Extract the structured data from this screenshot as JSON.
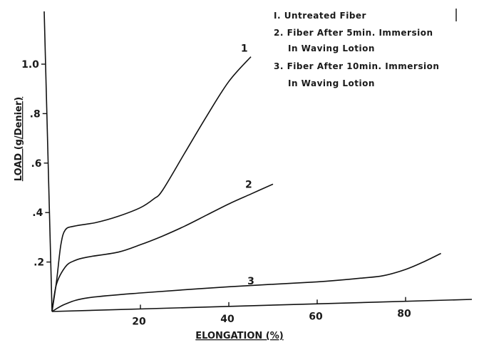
{
  "chart_data": {
    "type": "line",
    "title": "",
    "xlabel": "ELONGATION (%)",
    "ylabel": "LOAD (g/Denier)",
    "xlim": [
      0,
      95
    ],
    "ylim": [
      0,
      1.15
    ],
    "x_ticks": [
      {
        "value": 20,
        "label": "20"
      },
      {
        "value": 40,
        "label": "40"
      },
      {
        "value": 60,
        "label": "60"
      },
      {
        "value": 80,
        "label": "80"
      }
    ],
    "y_ticks": [
      {
        "value": 0.2,
        "label": ".2"
      },
      {
        "value": 0.4,
        "label": ".4"
      },
      {
        "value": 0.6,
        "label": ".6"
      },
      {
        "value": 0.8,
        "label": ".8"
      },
      {
        "value": 1.0,
        "label": "1.0"
      }
    ],
    "series": [
      {
        "name": "1",
        "points": [
          [
            0,
            0
          ],
          [
            1,
            0.12
          ],
          [
            2,
            0.27
          ],
          [
            3,
            0.33
          ],
          [
            5,
            0.345
          ],
          [
            10,
            0.36
          ],
          [
            15,
            0.385
          ],
          [
            20,
            0.42
          ],
          [
            23,
            0.455
          ],
          [
            25,
            0.49
          ],
          [
            30,
            0.64
          ],
          [
            35,
            0.79
          ],
          [
            40,
            0.93
          ],
          [
            45,
            1.03
          ]
        ],
        "label_at": [
          43.5,
          1.05
        ]
      },
      {
        "name": "2",
        "points": [
          [
            0,
            0
          ],
          [
            1,
            0.11
          ],
          [
            3,
            0.18
          ],
          [
            5,
            0.205
          ],
          [
            8,
            0.22
          ],
          [
            15,
            0.24
          ],
          [
            20,
            0.27
          ],
          [
            25,
            0.305
          ],
          [
            30,
            0.345
          ],
          [
            35,
            0.39
          ],
          [
            40,
            0.435
          ],
          [
            45,
            0.475
          ],
          [
            50,
            0.515
          ]
        ],
        "label_at": [
          44.5,
          0.5
        ]
      },
      {
        "name": "3",
        "points": [
          [
            0,
            0
          ],
          [
            3,
            0.03
          ],
          [
            8,
            0.055
          ],
          [
            20,
            0.075
          ],
          [
            40,
            0.1
          ],
          [
            60,
            0.12
          ],
          [
            70,
            0.135
          ],
          [
            75,
            0.145
          ],
          [
            80,
            0.17
          ],
          [
            84,
            0.2
          ],
          [
            88,
            0.235
          ]
        ],
        "label_at": [
          45,
          0.11
        ]
      }
    ],
    "legend": {
      "placement": "top-right",
      "lines": [
        "I. Untreated Fiber",
        "2. Fiber After  5min. Immersion",
        "In Waving Lotion",
        "3. Fiber After  10min. Immersion",
        "In Waving Lotion"
      ]
    }
  }
}
